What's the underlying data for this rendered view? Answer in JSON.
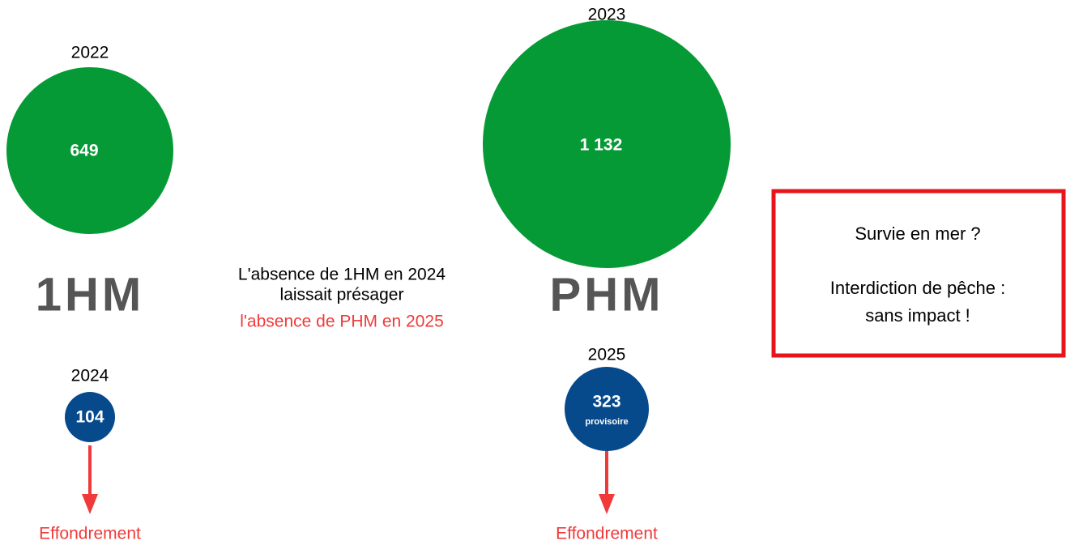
{
  "groups": [
    {
      "label": "1HM",
      "top": {
        "year": "2022",
        "value": "649"
      },
      "bottom": {
        "year": "2024",
        "value": "104"
      },
      "outcome": "Effondrement"
    },
    {
      "label": "PHM",
      "top": {
        "year": "2023",
        "value": "1 132"
      },
      "bottom": {
        "year": "2025",
        "value": "323",
        "note": "provisoire"
      },
      "outcome": "Effondrement"
    }
  ],
  "middle_note": [
    "L'absence de 1HM en 2024",
    "laissait présager",
    "l'absence de PHM en 2025"
  ],
  "box": [
    "Survie en mer ?",
    "Interdiction de pêche :",
    "sans impact !"
  ]
}
